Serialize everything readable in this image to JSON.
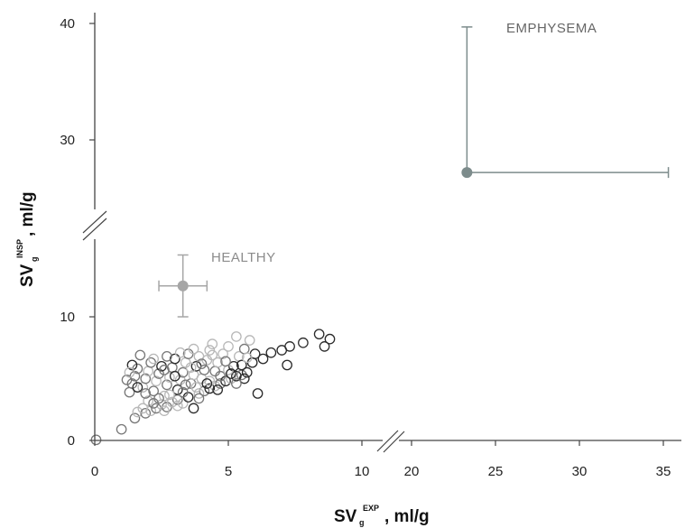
{
  "chart_data": {
    "type": "scatter",
    "title": "",
    "xlabel": {
      "main": "SV",
      "sub": "g",
      "sup": "EXP",
      "unit": ", ml/g"
    },
    "ylabel": {
      "main": "SV",
      "sub": "g",
      "sup": "INSP",
      "unit": ", ml/g"
    },
    "x_axis": {
      "broken": true,
      "segments": [
        {
          "range": [
            0,
            10.5
          ]
        },
        {
          "range": [
            18.5,
            36.5
          ]
        }
      ],
      "ticks": [
        0,
        5,
        10,
        20,
        25,
        30,
        35
      ]
    },
    "y_axis": {
      "broken": true,
      "segments": [
        {
          "range": [
            0,
            13
          ]
        },
        {
          "range": [
            22,
            41.5
          ]
        }
      ],
      "ticks": [
        0,
        10,
        30,
        40
      ]
    },
    "grid": false,
    "annotations": [
      {
        "text": "HEALTHY",
        "color": "#8c8c8c"
      },
      {
        "text": "EMPHYSEMA",
        "color": "#666666"
      }
    ],
    "summary_points": [
      {
        "label": "HEALTHY",
        "x": 3.3,
        "y": 12.5,
        "x_err": 0.9,
        "y_err_low": 2.5,
        "y_err_high": 2.5,
        "color": "#a6a6a6"
      },
      {
        "label": "EMPHYSEMA",
        "x": 23.3,
        "y": 27.2,
        "x_err_low": 0,
        "x_err_high": 12.0,
        "y_err_low": 0,
        "y_err_high": 12.5,
        "color": "#7d8c8c"
      }
    ],
    "colors": {
      "dark": "#2a2a2a",
      "mid": "#777777",
      "light": "#b8b8b8"
    },
    "points": [
      {
        "x": 0.05,
        "y": 0.05,
        "c": "mid"
      },
      {
        "x": 1.0,
        "y": 0.9,
        "c": "mid"
      },
      {
        "x": 1.5,
        "y": 1.8,
        "c": "mid"
      },
      {
        "x": 1.6,
        "y": 2.3,
        "c": "light"
      },
      {
        "x": 1.9,
        "y": 2.2,
        "c": "mid"
      },
      {
        "x": 2.1,
        "y": 2.4,
        "c": "light"
      },
      {
        "x": 2.3,
        "y": 2.6,
        "c": "mid"
      },
      {
        "x": 2.5,
        "y": 2.9,
        "c": "light"
      },
      {
        "x": 2.7,
        "y": 2.7,
        "c": "mid"
      },
      {
        "x": 2.9,
        "y": 3.1,
        "c": "light"
      },
      {
        "x": 3.1,
        "y": 3.3,
        "c": "mid"
      },
      {
        "x": 3.3,
        "y": 3.0,
        "c": "light"
      },
      {
        "x": 3.5,
        "y": 3.5,
        "c": "dark"
      },
      {
        "x": 3.7,
        "y": 2.6,
        "c": "dark"
      },
      {
        "x": 3.9,
        "y": 3.8,
        "c": "light"
      },
      {
        "x": 4.1,
        "y": 4.0,
        "c": "mid"
      },
      {
        "x": 4.3,
        "y": 4.2,
        "c": "dark"
      },
      {
        "x": 4.5,
        "y": 4.4,
        "c": "light"
      },
      {
        "x": 4.7,
        "y": 4.6,
        "c": "mid"
      },
      {
        "x": 4.9,
        "y": 4.8,
        "c": "dark"
      },
      {
        "x": 5.1,
        "y": 5.0,
        "c": "light"
      },
      {
        "x": 5.3,
        "y": 5.2,
        "c": "dark"
      },
      {
        "x": 5.5,
        "y": 5.3,
        "c": "mid"
      },
      {
        "x": 5.7,
        "y": 5.5,
        "c": "dark"
      },
      {
        "x": 1.3,
        "y": 3.9,
        "c": "mid"
      },
      {
        "x": 1.4,
        "y": 4.6,
        "c": "mid"
      },
      {
        "x": 1.5,
        "y": 5.2,
        "c": "mid"
      },
      {
        "x": 1.6,
        "y": 5.8,
        "c": "mid"
      },
      {
        "x": 1.4,
        "y": 6.1,
        "c": "dark"
      },
      {
        "x": 1.8,
        "y": 4.3,
        "c": "light"
      },
      {
        "x": 1.9,
        "y": 5.0,
        "c": "mid"
      },
      {
        "x": 2.0,
        "y": 5.6,
        "c": "light"
      },
      {
        "x": 2.1,
        "y": 6.3,
        "c": "mid"
      },
      {
        "x": 2.2,
        "y": 4.0,
        "c": "mid"
      },
      {
        "x": 2.3,
        "y": 4.8,
        "c": "light"
      },
      {
        "x": 2.4,
        "y": 5.4,
        "c": "mid"
      },
      {
        "x": 2.5,
        "y": 6.0,
        "c": "dark"
      },
      {
        "x": 2.6,
        "y": 3.6,
        "c": "light"
      },
      {
        "x": 2.7,
        "y": 4.5,
        "c": "mid"
      },
      {
        "x": 2.8,
        "y": 5.1,
        "c": "light"
      },
      {
        "x": 2.9,
        "y": 5.9,
        "c": "mid"
      },
      {
        "x": 3.0,
        "y": 6.6,
        "c": "dark"
      },
      {
        "x": 3.1,
        "y": 4.1,
        "c": "dark"
      },
      {
        "x": 3.2,
        "y": 4.9,
        "c": "light"
      },
      {
        "x": 3.3,
        "y": 5.5,
        "c": "mid"
      },
      {
        "x": 3.4,
        "y": 6.3,
        "c": "light"
      },
      {
        "x": 3.5,
        "y": 7.0,
        "c": "mid"
      },
      {
        "x": 3.6,
        "y": 4.6,
        "c": "mid"
      },
      {
        "x": 3.7,
        "y": 5.3,
        "c": "light"
      },
      {
        "x": 3.8,
        "y": 6.0,
        "c": "dark"
      },
      {
        "x": 3.9,
        "y": 6.8,
        "c": "light"
      },
      {
        "x": 4.0,
        "y": 5.0,
        "c": "light"
      },
      {
        "x": 4.1,
        "y": 5.7,
        "c": "mid"
      },
      {
        "x": 4.2,
        "y": 6.5,
        "c": "light"
      },
      {
        "x": 4.3,
        "y": 7.3,
        "c": "light"
      },
      {
        "x": 4.5,
        "y": 5.6,
        "c": "mid"
      },
      {
        "x": 4.6,
        "y": 6.3,
        "c": "light"
      },
      {
        "x": 4.8,
        "y": 7.0,
        "c": "light"
      },
      {
        "x": 5.0,
        "y": 7.6,
        "c": "light"
      },
      {
        "x": 5.2,
        "y": 6.0,
        "c": "dark"
      },
      {
        "x": 5.4,
        "y": 6.8,
        "c": "light"
      },
      {
        "x": 5.6,
        "y": 7.4,
        "c": "mid"
      },
      {
        "x": 5.8,
        "y": 8.1,
        "c": "light"
      },
      {
        "x": 5.9,
        "y": 6.3,
        "c": "dark"
      },
      {
        "x": 6.0,
        "y": 7.0,
        "c": "dark"
      },
      {
        "x": 6.1,
        "y": 3.8,
        "c": "dark"
      },
      {
        "x": 6.3,
        "y": 6.6,
        "c": "dark"
      },
      {
        "x": 6.6,
        "y": 7.1,
        "c": "dark"
      },
      {
        "x": 7.0,
        "y": 7.3,
        "c": "dark"
      },
      {
        "x": 7.2,
        "y": 6.1,
        "c": "dark"
      },
      {
        "x": 7.3,
        "y": 7.6,
        "c": "dark"
      },
      {
        "x": 7.8,
        "y": 7.9,
        "c": "dark"
      },
      {
        "x": 8.4,
        "y": 8.6,
        "c": "dark"
      },
      {
        "x": 8.6,
        "y": 7.6,
        "c": "dark"
      },
      {
        "x": 8.8,
        "y": 8.2,
        "c": "dark"
      },
      {
        "x": 2.0,
        "y": 3.2,
        "c": "light"
      },
      {
        "x": 2.4,
        "y": 3.4,
        "c": "mid"
      },
      {
        "x": 2.8,
        "y": 3.7,
        "c": "light"
      },
      {
        "x": 3.3,
        "y": 3.9,
        "c": "mid"
      },
      {
        "x": 3.8,
        "y": 4.3,
        "c": "light"
      },
      {
        "x": 4.3,
        "y": 4.8,
        "c": "light"
      },
      {
        "x": 4.7,
        "y": 5.2,
        "c": "mid"
      },
      {
        "x": 5.0,
        "y": 5.7,
        "c": "light"
      },
      {
        "x": 1.6,
        "y": 4.3,
        "c": "dark"
      },
      {
        "x": 1.7,
        "y": 6.9,
        "c": "mid"
      },
      {
        "x": 2.2,
        "y": 6.6,
        "c": "light"
      },
      {
        "x": 2.7,
        "y": 6.8,
        "c": "mid"
      },
      {
        "x": 3.2,
        "y": 7.1,
        "c": "light"
      },
      {
        "x": 3.7,
        "y": 7.4,
        "c": "light"
      },
      {
        "x": 4.4,
        "y": 7.8,
        "c": "light"
      },
      {
        "x": 5.3,
        "y": 8.4,
        "c": "light"
      },
      {
        "x": 1.2,
        "y": 4.9,
        "c": "mid"
      },
      {
        "x": 1.3,
        "y": 5.5,
        "c": "light"
      },
      {
        "x": 1.9,
        "y": 3.8,
        "c": "mid"
      },
      {
        "x": 2.6,
        "y": 5.7,
        "c": "mid"
      },
      {
        "x": 3.0,
        "y": 5.2,
        "c": "dark"
      },
      {
        "x": 3.4,
        "y": 4.5,
        "c": "mid"
      },
      {
        "x": 3.6,
        "y": 5.9,
        "c": "light"
      },
      {
        "x": 4.0,
        "y": 6.2,
        "c": "mid"
      },
      {
        "x": 4.2,
        "y": 4.6,
        "c": "dark"
      },
      {
        "x": 4.4,
        "y": 6.9,
        "c": "light"
      },
      {
        "x": 4.9,
        "y": 6.4,
        "c": "mid"
      },
      {
        "x": 5.1,
        "y": 5.4,
        "c": "dark"
      },
      {
        "x": 5.5,
        "y": 6.1,
        "c": "dark"
      },
      {
        "x": 5.7,
        "y": 6.7,
        "c": "light"
      },
      {
        "x": 5.6,
        "y": 5.0,
        "c": "dark"
      },
      {
        "x": 5.3,
        "y": 4.6,
        "c": "mid"
      },
      {
        "x": 4.6,
        "y": 4.1,
        "c": "dark"
      },
      {
        "x": 3.9,
        "y": 3.4,
        "c": "mid"
      },
      {
        "x": 3.1,
        "y": 2.8,
        "c": "light"
      },
      {
        "x": 2.6,
        "y": 2.4,
        "c": "light"
      },
      {
        "x": 2.2,
        "y": 3.0,
        "c": "mid"
      },
      {
        "x": 1.8,
        "y": 2.6,
        "c": "light"
      }
    ]
  }
}
